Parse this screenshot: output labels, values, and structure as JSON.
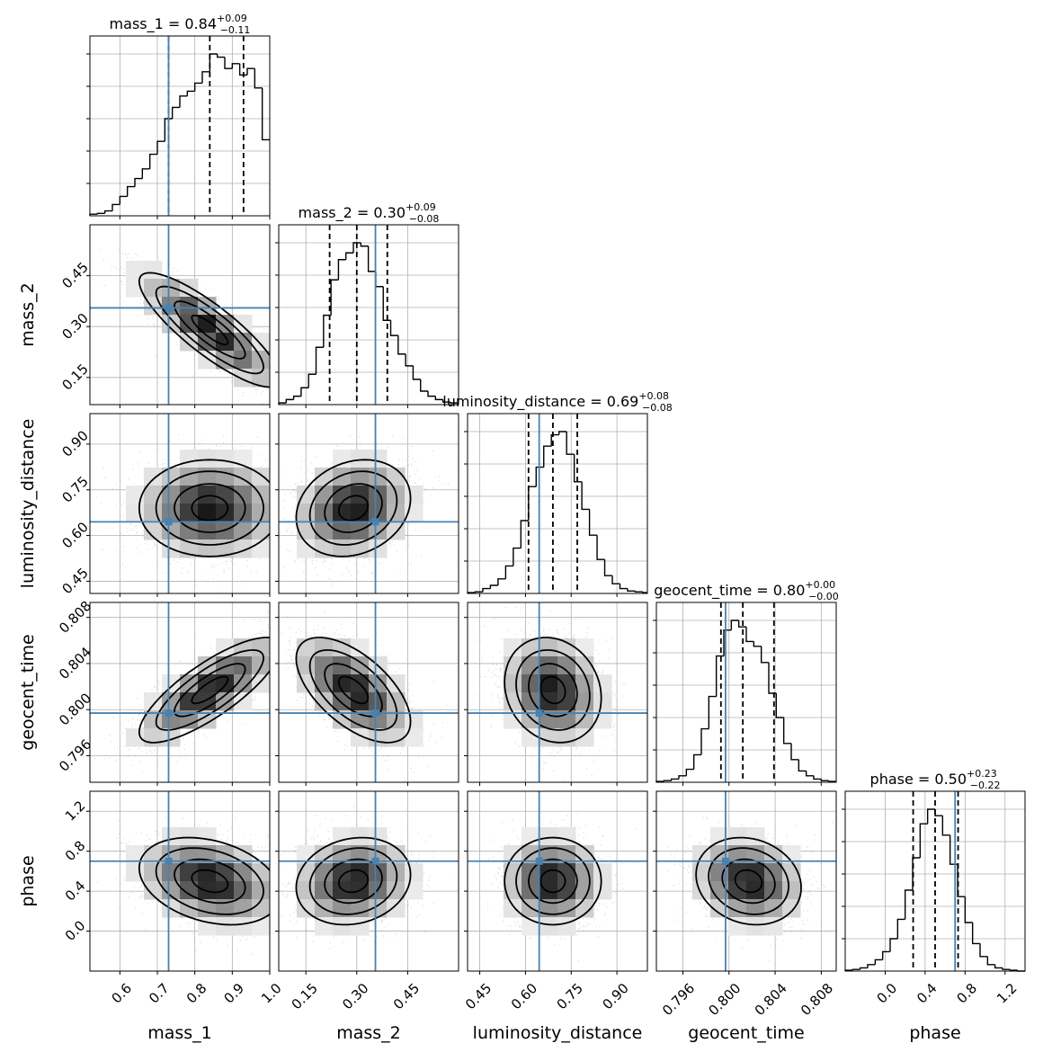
{
  "chart_data": {
    "type": "corner",
    "parameters": [
      "mass_1",
      "mass_2",
      "luminosity_distance",
      "geocent_time",
      "phase"
    ],
    "axes": [
      {
        "name": "mass_1",
        "range": [
          0.52,
          1.0
        ],
        "ticks": [
          0.6,
          0.7,
          0.8,
          0.9,
          1.0
        ],
        "tick_labels": [
          "0.6",
          "0.7",
          "0.8",
          "0.9",
          "1.0"
        ],
        "xlabel": "mass_1",
        "ylabel": ""
      },
      {
        "name": "mass_2",
        "range": [
          0.07,
          0.6
        ],
        "ticks": [
          0.15,
          0.3,
          0.45
        ],
        "tick_labels": [
          "0.15",
          "0.30",
          "0.45"
        ],
        "xlabel": "mass_2",
        "ylabel": "mass_2"
      },
      {
        "name": "luminosity_distance",
        "range": [
          0.41,
          1.0
        ],
        "ticks": [
          0.45,
          0.6,
          0.75,
          0.9
        ],
        "tick_labels": [
          "0.45",
          "0.60",
          "0.75",
          "0.90"
        ],
        "xlabel": "luminosity_distance",
        "ylabel": "luminosity_distance"
      },
      {
        "name": "geocent_time",
        "range": [
          0.7937,
          0.8093
        ],
        "ticks": [
          0.796,
          0.8,
          0.804,
          0.808
        ],
        "tick_labels": [
          "0.796",
          "0.800",
          "0.804",
          "0.808"
        ],
        "xlabel": "geocent_time",
        "ylabel": "geocent_time"
      },
      {
        "name": "phase",
        "range": [
          -0.4,
          1.4
        ],
        "ticks": [
          0.0,
          0.4,
          0.8,
          1.2
        ],
        "tick_labels": [
          "0.0",
          "0.4",
          "0.8",
          "1.2"
        ],
        "xlabel": "phase",
        "ylabel": "phase"
      }
    ],
    "titles": [
      {
        "label": "mass_1 = 0.84",
        "plus": "+0.09",
        "minus": "−0.11"
      },
      {
        "label": "mass_2 = 0.30",
        "plus": "+0.09",
        "minus": "−0.08"
      },
      {
        "label": "luminosity_distance = 0.69",
        "plus": "+0.08",
        "minus": "−0.08"
      },
      {
        "label": "geocent_time = 0.80",
        "plus": "+0.00",
        "minus": "−0.00"
      },
      {
        "label": "phase = 0.50",
        "plus": "+0.23",
        "minus": "−0.22"
      }
    ],
    "medians": [
      0.84,
      0.3,
      0.69,
      0.8012,
      0.5
    ],
    "quantiles_16_84": [
      [
        0.73,
        0.93
      ],
      [
        0.22,
        0.39
      ],
      [
        0.61,
        0.77
      ],
      [
        0.7993,
        0.8039
      ],
      [
        0.28,
        0.73
      ]
    ],
    "injection": [
      0.73,
      0.355,
      0.645,
      0.7997,
      0.7
    ],
    "histograms": [
      {
        "param": "mass_1",
        "edges": [
          0.52,
          0.54,
          0.56,
          0.58,
          0.6,
          0.62,
          0.64,
          0.66,
          0.68,
          0.7,
          0.72,
          0.74,
          0.76,
          0.78,
          0.8,
          0.82,
          0.84,
          0.86,
          0.88,
          0.9,
          0.92,
          0.94,
          0.96,
          0.98,
          1.0
        ],
        "counts": [
          0.01,
          0.015,
          0.03,
          0.07,
          0.12,
          0.18,
          0.23,
          0.29,
          0.38,
          0.46,
          0.6,
          0.67,
          0.74,
          0.77,
          0.82,
          0.89,
          1.0,
          0.98,
          0.91,
          0.94,
          0.87,
          0.91,
          0.79,
          0.47
        ]
      },
      {
        "param": "mass_2",
        "edges": [
          0.07,
          0.092,
          0.114,
          0.136,
          0.158,
          0.18,
          0.202,
          0.224,
          0.246,
          0.268,
          0.29,
          0.312,
          0.334,
          0.356,
          0.378,
          0.4,
          0.422,
          0.444,
          0.466,
          0.488,
          0.51,
          0.532,
          0.554,
          0.576,
          0.6
        ],
        "counts": [
          0.01,
          0.03,
          0.05,
          0.1,
          0.18,
          0.34,
          0.53,
          0.74,
          0.86,
          0.9,
          0.96,
          0.94,
          0.79,
          0.7,
          0.5,
          0.41,
          0.3,
          0.23,
          0.15,
          0.08,
          0.05,
          0.03,
          0.015,
          0.01
        ]
      },
      {
        "param": "luminosity_distance",
        "edges": [
          0.41,
          0.435,
          0.46,
          0.485,
          0.51,
          0.535,
          0.56,
          0.585,
          0.61,
          0.635,
          0.66,
          0.685,
          0.71,
          0.735,
          0.76,
          0.785,
          0.81,
          0.835,
          0.86,
          0.885,
          0.91,
          0.935,
          0.96,
          0.985,
          1.0
        ],
        "counts": [
          0.005,
          0.01,
          0.03,
          0.05,
          0.09,
          0.17,
          0.28,
          0.45,
          0.66,
          0.78,
          0.91,
          0.98,
          1.0,
          0.86,
          0.69,
          0.52,
          0.36,
          0.21,
          0.11,
          0.06,
          0.03,
          0.015,
          0.01,
          0.005
        ]
      },
      {
        "param": "geocent_time",
        "edges": [
          0.7937,
          0.79435,
          0.795,
          0.79565,
          0.7963,
          0.79695,
          0.7976,
          0.79825,
          0.7989,
          0.79955,
          0.8002,
          0.80085,
          0.8015,
          0.80215,
          0.8028,
          0.80345,
          0.8041,
          0.80475,
          0.8054,
          0.80605,
          0.8067,
          0.80735,
          0.808,
          0.80865,
          0.8093
        ],
        "counts": [
          0.005,
          0.01,
          0.02,
          0.04,
          0.08,
          0.17,
          0.33,
          0.53,
          0.78,
          0.94,
          1.0,
          0.96,
          0.87,
          0.84,
          0.74,
          0.55,
          0.4,
          0.24,
          0.14,
          0.07,
          0.04,
          0.02,
          0.01,
          0.005
        ]
      },
      {
        "param": "phase",
        "edges": [
          -0.4,
          -0.325,
          -0.25,
          -0.175,
          -0.1,
          -0.025,
          0.05,
          0.125,
          0.2,
          0.275,
          0.35,
          0.425,
          0.5,
          0.575,
          0.65,
          0.725,
          0.8,
          0.875,
          0.95,
          1.025,
          1.1,
          1.175,
          1.25,
          1.325,
          1.4
        ],
        "counts": [
          0.005,
          0.01,
          0.02,
          0.04,
          0.07,
          0.12,
          0.2,
          0.32,
          0.5,
          0.7,
          0.91,
          1.0,
          0.96,
          0.84,
          0.66,
          0.46,
          0.3,
          0.17,
          0.09,
          0.04,
          0.02,
          0.01,
          0.005,
          0.0
        ]
      }
    ],
    "pairs": [
      {
        "x": "mass_1",
        "y": "mass_2",
        "mean": [
          0.84,
          0.29
        ],
        "std": [
          0.095,
          0.085
        ],
        "corr": -0.85
      },
      {
        "x": "mass_1",
        "y": "luminosity_distance",
        "mean": [
          0.84,
          0.69
        ],
        "std": [
          0.095,
          0.08
        ],
        "corr": 0.0
      },
      {
        "x": "mass_2",
        "y": "luminosity_distance",
        "mean": [
          0.29,
          0.69
        ],
        "std": [
          0.085,
          0.08
        ],
        "corr": 0.2
      },
      {
        "x": "mass_1",
        "y": "geocent_time",
        "mean": [
          0.84,
          0.8017
        ],
        "std": [
          0.095,
          0.0023
        ],
        "corr": 0.8
      },
      {
        "x": "mass_2",
        "y": "geocent_time",
        "mean": [
          0.29,
          0.8017
        ],
        "std": [
          0.085,
          0.0023
        ],
        "corr": -0.6
      },
      {
        "x": "luminosity_distance",
        "y": "geocent_time",
        "mean": [
          0.69,
          0.8017
        ],
        "std": [
          0.08,
          0.0023
        ],
        "corr": -0.15
      },
      {
        "x": "mass_1",
        "y": "phase",
        "mean": [
          0.84,
          0.5
        ],
        "std": [
          0.095,
          0.22
        ],
        "corr": -0.3
      },
      {
        "x": "mass_2",
        "y": "phase",
        "mean": [
          0.29,
          0.5
        ],
        "std": [
          0.085,
          0.22
        ],
        "corr": 0.15
      },
      {
        "x": "luminosity_distance",
        "y": "phase",
        "mean": [
          0.69,
          0.5
        ],
        "std": [
          0.08,
          0.22
        ],
        "corr": 0.0
      },
      {
        "x": "geocent_time",
        "y": "phase",
        "mean": [
          0.8017,
          0.5
        ],
        "std": [
          0.0023,
          0.22
        ],
        "corr": -0.15
      }
    ],
    "contour_levels_sigma": [
      0.5,
      1.0,
      1.5,
      2.0
    ],
    "grid": true,
    "colors": {
      "histogram": "#000000",
      "injection": "#4682b4",
      "contour": "#000000",
      "samples": "#9e9e9e",
      "grid": "#b0b0b0"
    }
  }
}
